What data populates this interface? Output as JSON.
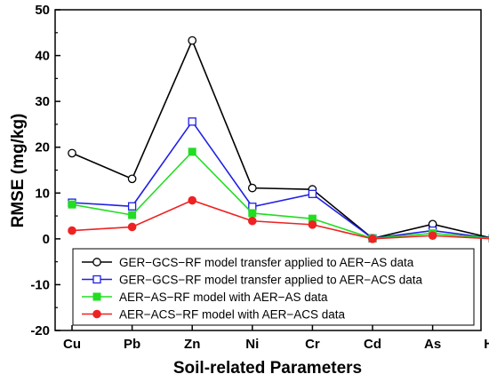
{
  "chart_data": {
    "type": "line",
    "title": "",
    "xlabel": "Soil-related Parameters",
    "ylabel": "RMSE (mg/kg)",
    "categories": [
      "Cu",
      "Pb",
      "Zn",
      "Ni",
      "Cr",
      "Cd",
      "As",
      "Hg"
    ],
    "ylim": [
      -20,
      50
    ],
    "yticks": [
      -20,
      -10,
      0,
      10,
      20,
      30,
      40,
      50
    ],
    "grid": false,
    "legend_position": "bottom-right",
    "series": [
      {
        "name": "GER−GCS−RF model transfer applied to AER−AS data",
        "color": "#000000",
        "marker": "open-circle",
        "values": [
          18.7,
          13.1,
          43.3,
          11.1,
          10.8,
          0.1,
          3.2,
          0.1
        ]
      },
      {
        "name": "GER−GCS−RF model transfer applied to AER−ACS data",
        "color": "#1f1fe6",
        "marker": "open-square",
        "values": [
          7.9,
          7.1,
          25.6,
          7.0,
          9.8,
          0.1,
          1.8,
          0.1
        ]
      },
      {
        "name": "AER−AS−RF model with AER−AS data",
        "color": "#22dd22",
        "marker": "filled-square",
        "values": [
          7.5,
          5.2,
          19.0,
          5.6,
          4.4,
          0.1,
          1.2,
          0.1
        ]
      },
      {
        "name": "AER−ACS−RF model with AER−ACS data",
        "color": "#ee2222",
        "marker": "filled-circle",
        "values": [
          1.8,
          2.6,
          8.4,
          3.9,
          3.1,
          0.0,
          0.7,
          0.0
        ]
      }
    ]
  }
}
